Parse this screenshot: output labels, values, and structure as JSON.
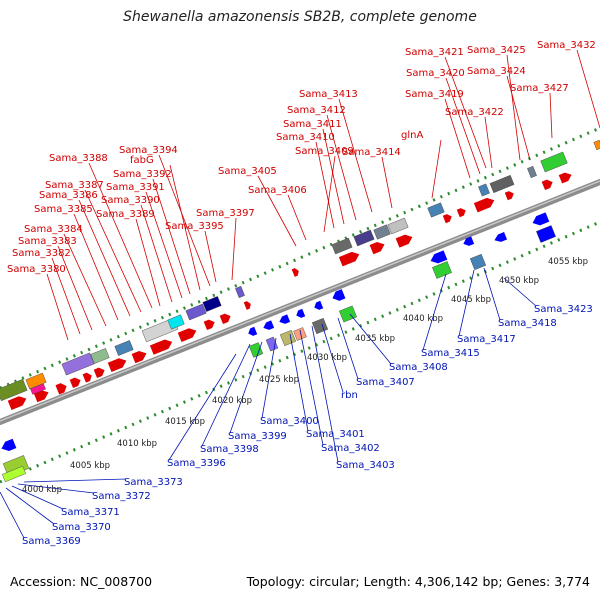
{
  "title": "Shewanella amazonensis SB2B, complete genome",
  "footer": {
    "accession": "Accession: NC_008700",
    "topology": "Topology: circular; Length: 4,306,142 bp; Genes: 3,774"
  },
  "colors": {
    "forward_label": "#d10000",
    "reverse_label": "#0014b4",
    "backbone": "#8c8c8c",
    "ticks": "#2e8b2e"
  },
  "ticks": [
    "4000 kbp",
    "4005 kbp",
    "4010 kbp",
    "4015 kbp",
    "4020 kbp",
    "4025 kbp",
    "4030 kbp",
    "4035 kbp",
    "4040 kbp",
    "4045 kbp",
    "4050 kbp",
    "4055 kbp"
  ],
  "forward_genes": [
    "Sama_3380",
    "Sama_3382",
    "Sama_3383",
    "Sama_3384",
    "Sama_3385",
    "Sama_3386",
    "Sama_3387",
    "Sama_3388",
    "Sama_3389",
    "Sama_3390",
    "Sama_3391",
    "Sama_3392",
    "fabG",
    "Sama_3394",
    "Sama_3395",
    "Sama_3397",
    "Sama_3405",
    "Sama_3406",
    "Sama_3409",
    "Sama_3410",
    "Sama_3411",
    "Sama_3412",
    "Sama_3413",
    "Sama_3414",
    "glnA",
    "Sama_3419",
    "Sama_3420",
    "Sama_3421",
    "Sama_3422",
    "Sama_3424",
    "Sama_3425",
    "Sama_3427",
    "Sama_3432"
  ],
  "reverse_genes": [
    "Sama_3369",
    "Sama_3370",
    "Sama_3371",
    "Sama_3372",
    "Sama_3373",
    "Sama_3396",
    "Sama_3398",
    "Sama_3399",
    "Sama_3400",
    "Sama_3401",
    "Sama_3402",
    "Sama_3403",
    "rbn",
    "Sama_3407",
    "Sama_3408",
    "Sama_3415",
    "Sama_3417",
    "Sama_3418",
    "Sama_3423"
  ]
}
